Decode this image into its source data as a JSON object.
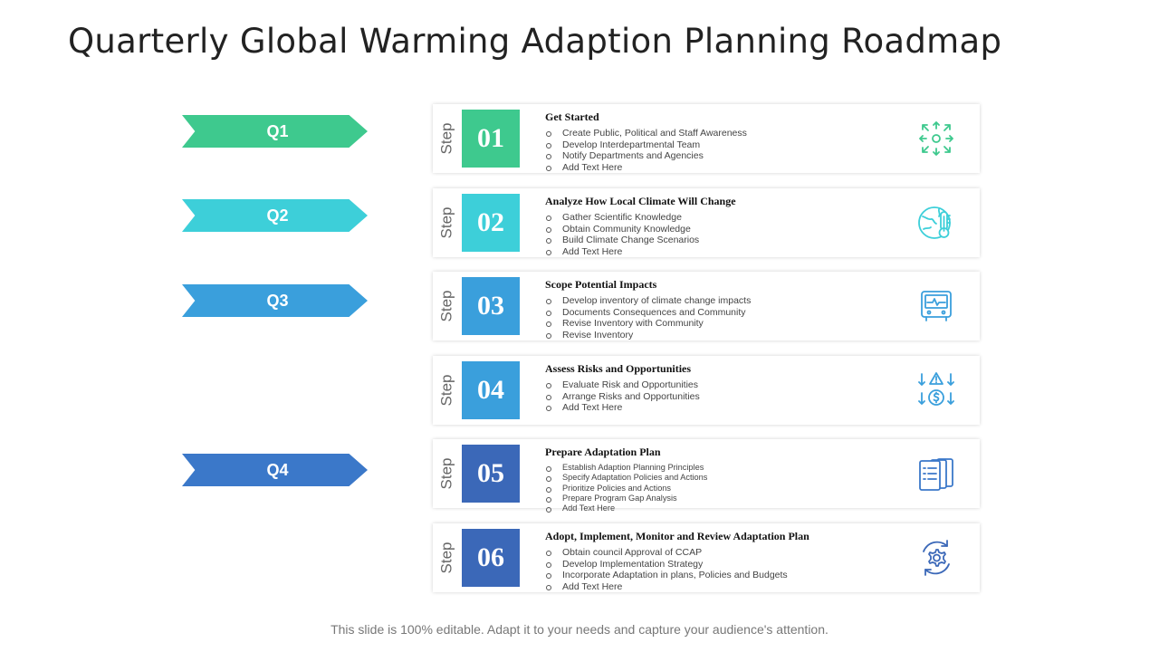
{
  "title": "Quarterly Global Warming Adaption Planning Roadmap",
  "footer": "This slide is 100% editable. Adapt it to your needs and capture your audience's attention.",
  "colors": {
    "q1": "#3ec98e",
    "q2": "#3dcfd9",
    "q3": "#3a9fdc",
    "q4": "#3b78c9",
    "step1": "#3ec98e",
    "step2": "#3dcfd9",
    "step3": "#3a9fdc",
    "step4": "#3a9fdc",
    "step5": "#3b68b8",
    "step6": "#3b68b8"
  },
  "quarters": [
    {
      "label": "Q1"
    },
    {
      "label": "Q2"
    },
    {
      "label": "Q3"
    },
    {
      "label": "Q4"
    }
  ],
  "steps": [
    {
      "step_word": "Step",
      "number": "01",
      "heading": "Get Started",
      "icon": "expand-arrows-icon",
      "items": [
        "Create Public, Political and Staff Awareness",
        "Develop Interdepartmental Team",
        "Notify Departments and Agencies",
        "Add Text Here"
      ]
    },
    {
      "step_word": "Step",
      "number": "02",
      "heading": "Analyze How Local Climate Will Change",
      "icon": "globe-thermometer-icon",
      "items": [
        "Gather Scientific Knowledge",
        "Obtain Community  Knowledge",
        "Build Climate  Change Scenarios",
        "Add Text Here"
      ]
    },
    {
      "step_word": "Step",
      "number": "03",
      "heading": "Scope Potential Impacts",
      "icon": "monitor-pulse-icon",
      "items": [
        "Develop inventory of climate change impacts",
        "Documents Consequences and Community",
        "Revise Inventory with Community",
        "Revise Inventory"
      ]
    },
    {
      "step_word": "Step",
      "number": "04",
      "heading": "Assess Risks and Opportunities",
      "icon": "risk-dollar-icon",
      "items": [
        "Evaluate Risk and Opportunities",
        "Arrange Risks and Opportunities",
        "Add Text Here"
      ]
    },
    {
      "step_word": "Step",
      "number": "05",
      "heading": "Prepare Adaptation Plan",
      "icon": "documents-icon",
      "items": [
        "Establish Adaption Planning Principles",
        "Specify Adaptation Policies and Actions",
        "Prioritize Policies and Actions",
        "Prepare Program Gap Analysis",
        "Add Text Here"
      ]
    },
    {
      "step_word": "Step",
      "number": "06",
      "heading": "Adopt, Implement, Monitor and Review Adaptation Plan",
      "icon": "gear-cycle-icon",
      "items": [
        "Obtain council Approval of CCAP",
        "Develop Implementation  Strategy",
        "Incorporate Adaptation in plans, Policies and Budgets",
        "Add Text Here"
      ]
    }
  ]
}
